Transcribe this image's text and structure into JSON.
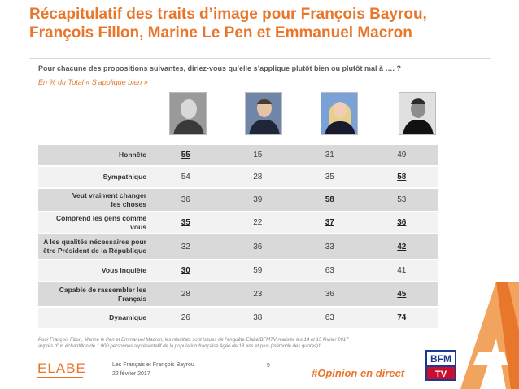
{
  "title_line1": "Récapitulatif des traits d’image pour François Bayrou,",
  "title_line2": "François Fillon, Marine Le Pen et Emmanuel Macron",
  "question": "Pour chacune des propositions suivantes, diriez-vous qu’elle s’applique plutôt bien ou plutôt mal à …. ?",
  "subtitle": "En % du Total « S’applique bien »",
  "rows": [
    {
      "label_line1": "Honnête",
      "label_line2": "",
      "values": [
        "55",
        "15",
        "31",
        "49"
      ],
      "highlight": 0
    },
    {
      "label_line1": "Sympathique",
      "label_line2": "",
      "values": [
        "54",
        "28",
        "35",
        "58"
      ],
      "highlight": 3
    },
    {
      "label_line1": "Veut vraiment changer",
      "label_line2": "les choses",
      "values": [
        "36",
        "39",
        "58",
        "53"
      ],
      "highlight": 2
    },
    {
      "label_line1": "Comprend les gens comme vous",
      "label_line2": "",
      "values": [
        "35",
        "22",
        "37",
        "36"
      ],
      "highlight": [
        0,
        2,
        3
      ]
    },
    {
      "label_line1": "A les qualités nécessaires pour",
      "label_line2": "être Président de la République",
      "values": [
        "32",
        "36",
        "33",
        "42"
      ],
      "highlight": 3
    },
    {
      "label_line1": "Vous inquiète",
      "label_line2": "",
      "values": [
        "30",
        "59",
        "63",
        "41"
      ],
      "highlight": 0
    },
    {
      "label_line1": "Capable de rassembler les",
      "label_line2": "Français",
      "values": [
        "28",
        "23",
        "36",
        "45"
      ],
      "highlight": 3
    },
    {
      "label_line1": "Dynamique",
      "label_line2": "",
      "values": [
        "26",
        "38",
        "63",
        "74"
      ],
      "highlight": 3
    }
  ],
  "footnote_line1": "Pour François Fillon, Marine le Pen et Emmanuel Macron, les résultats sont issues de l’enquête Elabe/BFMTV réalisée les 14 et 15 février 2017",
  "footnote_line2": "auprès d’un échantillon de 1 000 personnes représentatif de la population française âgée de 18 ans et plus (méthode des quotas)1",
  "footer": {
    "logo": "ELABE",
    "study_name": "Les Français et François Bayrou",
    "date": "22 février 2017",
    "page_number": "9",
    "hashtag": "#Opinion en direct",
    "partner_logo_top": "BFM",
    "partner_logo_bottom": "TV"
  },
  "colors": {
    "accent": "#e8762b",
    "row_dark": "#d9d9d9",
    "row_light": "#f2f2f2"
  },
  "icons": [
    "portrait-photo",
    "bfmtv-logo",
    "elabe-logo",
    "decorative-a-shape"
  ]
}
